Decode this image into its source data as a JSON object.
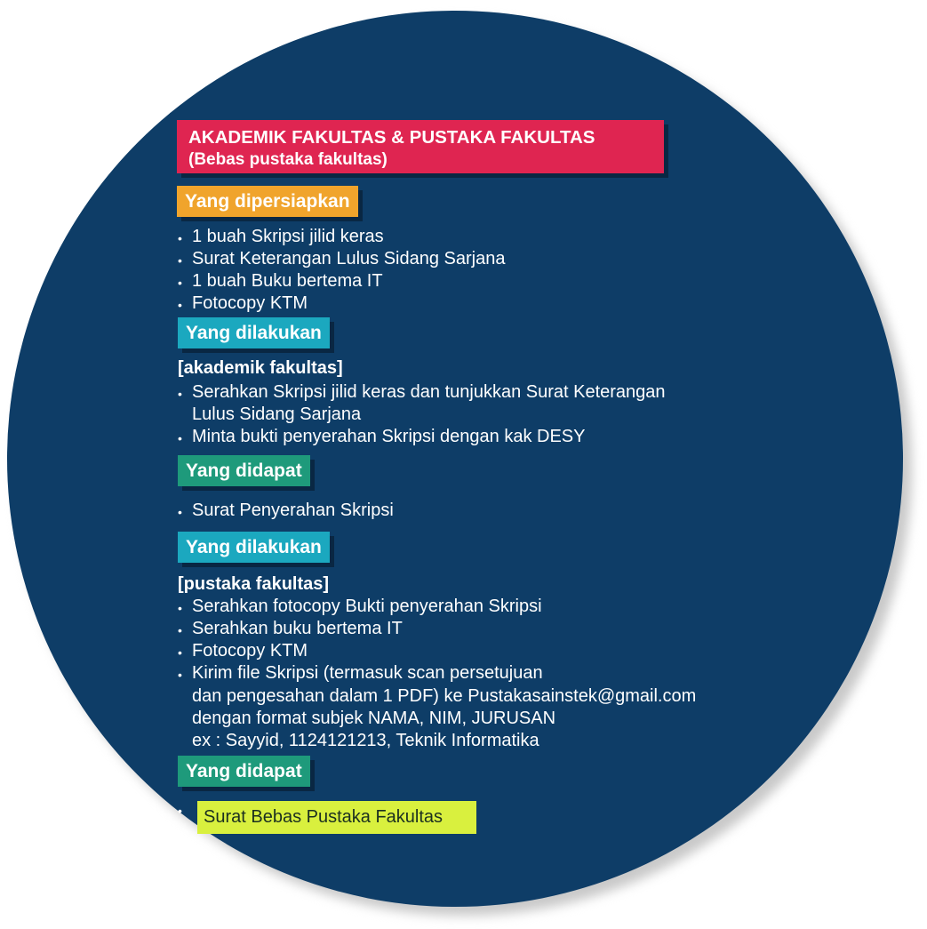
{
  "title": {
    "line1": "AKADEMIK FAKULTAS & PUSTAKA FAKULTAS",
    "line2": "(Bebas pustaka fakultas)"
  },
  "sections": {
    "prepared": {
      "label": "Yang dipersiapkan",
      "items": [
        "1 buah Skripsi jilid keras",
        "Surat Keterangan Lulus Sidang Sarjana",
        "1 buah Buku bertema IT",
        "Fotocopy KTM"
      ]
    },
    "done_academic": {
      "label": "Yang dilakukan",
      "subheading": "[akademik fakultas]",
      "items": [
        "Serahkan Skripsi jilid keras dan tunjukkan Surat Keterangan",
        "Lulus Sidang Sarjana",
        "Minta bukti penyerahan Skripsi dengan kak DESY"
      ]
    },
    "obtained_academic": {
      "label": "Yang didapat",
      "items": [
        "Surat Penyerahan Skripsi"
      ]
    },
    "done_library": {
      "label": "Yang dilakukan",
      "subheading": "[pustaka fakultas]",
      "items": [
        "Serahkan fotocopy Bukti penyerahan Skripsi",
        "Serahkan buku bertema IT",
        "Fotocopy KTM",
        "Kirim file Skripsi (termasuk scan persetujuan",
        "dan pengesahan dalam 1 PDF) ke Pustakasainstek@gmail.com",
        "dengan format subjek NAMA, NIM, JURUSAN",
        "ex : Sayyid, 1124121213, Teknik Informatika"
      ]
    },
    "obtained_library": {
      "label": "Yang didapat",
      "items": [
        "Surat Bebas Pustaka Fakultas"
      ]
    }
  },
  "colors": {
    "background_circle": "#0e3d67",
    "title_box": "#df2551",
    "prepared_tag": "#f0a42c",
    "done_tag": "#1ba8bf",
    "obtained_tag": "#1e9a7b",
    "final_highlight": "#d9f03e"
  },
  "bullet_symbol": "•"
}
